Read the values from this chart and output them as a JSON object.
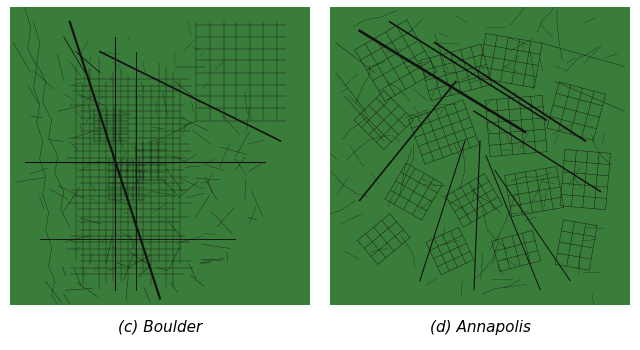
{
  "background_color": "#3a7d3a",
  "road_color": "#111111",
  "figure_bg": "#ffffff",
  "label_c": "(c) Boulder",
  "label_d": "(d) Annapolis",
  "label_fontsize": 11,
  "figsize": [
    6.4,
    3.5
  ],
  "dpi": 100
}
